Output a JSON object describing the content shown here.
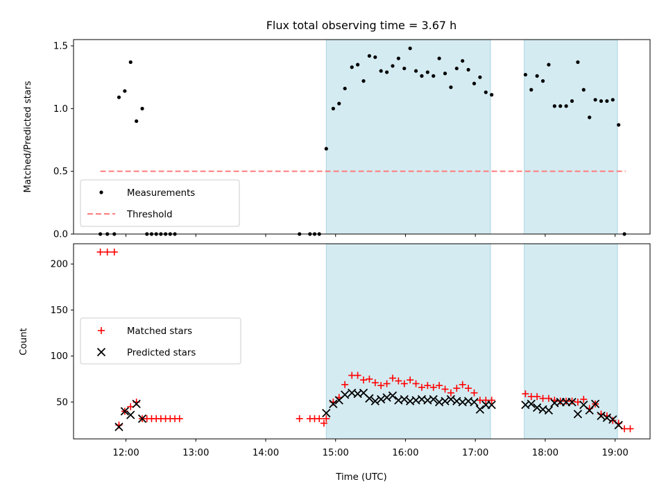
{
  "chart_data": [
    {
      "type": "scatter",
      "title": "Flux total observing time = 3.67 h",
      "xlabel": "",
      "ylabel": "Matched/Predicted stars",
      "ylim": [
        0,
        1.55
      ],
      "yticks": [
        0.0,
        0.5,
        1.0,
        1.5
      ],
      "ytick_labels": [
        "0.0",
        "0.5",
        "1.0",
        "1.5"
      ],
      "xlim": [
        "11:15",
        "19:30"
      ],
      "shaded_ranges": [
        [
          "14:52",
          "17:13"
        ],
        [
          "17:42",
          "19:02"
        ]
      ],
      "shade_color": "#d4ebf1",
      "grid": false,
      "legend_position": "lower-left",
      "series": [
        {
          "name": "Measurements",
          "marker": "dot",
          "color": "#000000",
          "points": [
            [
              "11:38",
              0.0
            ],
            [
              "11:44",
              0.0
            ],
            [
              "11:50",
              0.0
            ],
            [
              "11:54",
              1.09
            ],
            [
              "11:59",
              1.14
            ],
            [
              "12:04",
              1.37
            ],
            [
              "12:09",
              0.9
            ],
            [
              "12:14",
              1.0
            ],
            [
              "12:18",
              0.0
            ],
            [
              "12:22",
              0.0
            ],
            [
              "12:26",
              0.0
            ],
            [
              "12:30",
              0.0
            ],
            [
              "12:34",
              0.0
            ],
            [
              "12:38",
              0.0
            ],
            [
              "12:42",
              0.0
            ],
            [
              "14:29",
              0.0
            ],
            [
              "14:38",
              0.0
            ],
            [
              "14:42",
              0.0
            ],
            [
              "14:46",
              0.0
            ],
            [
              "14:52",
              0.68
            ],
            [
              "14:58",
              1.0
            ],
            [
              "15:03",
              1.04
            ],
            [
              "15:08",
              1.16
            ],
            [
              "15:14",
              1.33
            ],
            [
              "15:19",
              1.35
            ],
            [
              "15:24",
              1.22
            ],
            [
              "15:29",
              1.42
            ],
            [
              "15:34",
              1.41
            ],
            [
              "15:39",
              1.3
            ],
            [
              "15:44",
              1.29
            ],
            [
              "15:49",
              1.34
            ],
            [
              "15:54",
              1.4
            ],
            [
              "15:59",
              1.32
            ],
            [
              "16:04",
              1.48
            ],
            [
              "16:09",
              1.3
            ],
            [
              "16:14",
              1.26
            ],
            [
              "16:19",
              1.29
            ],
            [
              "16:24",
              1.26
            ],
            [
              "16:29",
              1.4
            ],
            [
              "16:34",
              1.28
            ],
            [
              "16:39",
              1.17
            ],
            [
              "16:44",
              1.32
            ],
            [
              "16:49",
              1.38
            ],
            [
              "16:54",
              1.31
            ],
            [
              "16:59",
              1.2
            ],
            [
              "17:04",
              1.25
            ],
            [
              "17:09",
              1.13
            ],
            [
              "17:14",
              1.11
            ],
            [
              "17:43",
              1.27
            ],
            [
              "17:48",
              1.15
            ],
            [
              "17:53",
              1.26
            ],
            [
              "17:58",
              1.22
            ],
            [
              "18:03",
              1.35
            ],
            [
              "18:08",
              1.02
            ],
            [
              "18:13",
              1.02
            ],
            [
              "18:18",
              1.02
            ],
            [
              "18:23",
              1.06
            ],
            [
              "18:28",
              1.37
            ],
            [
              "18:33",
              1.15
            ],
            [
              "18:38",
              0.93
            ],
            [
              "18:43",
              1.07
            ],
            [
              "18:48",
              1.06
            ],
            [
              "18:53",
              1.06
            ],
            [
              "18:58",
              1.07
            ],
            [
              "19:03",
              0.87
            ],
            [
              "19:08",
              0.0
            ]
          ]
        },
        {
          "name": "Threshold",
          "style": "dashed-line",
          "color": "#ff7b7b",
          "points": [
            [
              "11:38",
              0.5
            ],
            [
              "19:09",
              0.5
            ]
          ]
        }
      ]
    },
    {
      "type": "scatter",
      "title": "",
      "xlabel": "Time (UTC)",
      "ylabel": "Count",
      "ylim": [
        10,
        222
      ],
      "yticks": [
        50,
        100,
        150,
        200
      ],
      "ytick_labels": [
        "50",
        "100",
        "150",
        "200"
      ],
      "xlim": [
        "11:15",
        "19:30"
      ],
      "xticks": [
        "12:00",
        "13:00",
        "14:00",
        "15:00",
        "16:00",
        "17:00",
        "18:00",
        "19:00"
      ],
      "xtick_labels": [
        "12:00",
        "13:00",
        "14:00",
        "15:00",
        "16:00",
        "17:00",
        "18:00",
        "19:00"
      ],
      "shaded_ranges": [
        [
          "14:52",
          "17:13"
        ],
        [
          "17:42",
          "19:02"
        ]
      ],
      "shade_color": "#d4ebf1",
      "grid": false,
      "legend_position": "center-left",
      "series": [
        {
          "name": "Matched stars",
          "marker": "plus",
          "color": "#ff0000",
          "points": [
            [
              "11:38",
              213
            ],
            [
              "11:44",
              213
            ],
            [
              "11:50",
              213
            ],
            [
              "11:54",
              25
            ],
            [
              "11:59",
              40
            ],
            [
              "12:04",
              45
            ],
            [
              "12:09",
              50
            ],
            [
              "12:14",
              32
            ],
            [
              "12:18",
              32
            ],
            [
              "12:22",
              32
            ],
            [
              "12:26",
              32
            ],
            [
              "12:30",
              32
            ],
            [
              "12:34",
              32
            ],
            [
              "12:38",
              32
            ],
            [
              "12:42",
              32
            ],
            [
              "12:46",
              32
            ],
            [
              "14:29",
              32
            ],
            [
              "14:38",
              32
            ],
            [
              "14:42",
              32
            ],
            [
              "14:46",
              32
            ],
            [
              "14:50",
              27
            ],
            [
              "14:52",
              32
            ],
            [
              "14:58",
              50
            ],
            [
              "15:03",
              55
            ],
            [
              "15:08",
              69
            ],
            [
              "15:14",
              79
            ],
            [
              "15:19",
              79
            ],
            [
              "15:24",
              74
            ],
            [
              "15:29",
              75
            ],
            [
              "15:34",
              71
            ],
            [
              "15:39",
              68
            ],
            [
              "15:44",
              70
            ],
            [
              "15:49",
              76
            ],
            [
              "15:54",
              73
            ],
            [
              "15:59",
              70
            ],
            [
              "16:04",
              74
            ],
            [
              "16:09",
              70
            ],
            [
              "16:14",
              66
            ],
            [
              "16:19",
              68
            ],
            [
              "16:24",
              66
            ],
            [
              "16:29",
              68
            ],
            [
              "16:34",
              64
            ],
            [
              "16:39",
              60
            ],
            [
              "16:44",
              65
            ],
            [
              "16:49",
              69
            ],
            [
              "16:54",
              65
            ],
            [
              "16:59",
              60
            ],
            [
              "17:04",
              52
            ],
            [
              "17:09",
              52
            ],
            [
              "17:14",
              52
            ],
            [
              "17:43",
              59
            ],
            [
              "17:48",
              56
            ],
            [
              "17:53",
              56
            ],
            [
              "17:58",
              54
            ],
            [
              "18:03",
              54
            ],
            [
              "18:08",
              52
            ],
            [
              "18:13",
              51
            ],
            [
              "18:18",
              51
            ],
            [
              "18:23",
              51
            ],
            [
              "18:28",
              50
            ],
            [
              "18:33",
              53
            ],
            [
              "18:38",
              43
            ],
            [
              "18:43",
              48
            ],
            [
              "18:48",
              37
            ],
            [
              "18:53",
              35
            ],
            [
              "18:58",
              30
            ],
            [
              "19:03",
              27
            ],
            [
              "19:08",
              21
            ],
            [
              "19:13",
              21
            ]
          ]
        },
        {
          "name": "Predicted stars",
          "marker": "x",
          "color": "#000000",
          "points": [
            [
              "11:54",
              23
            ],
            [
              "11:59",
              40
            ],
            [
              "12:04",
              36
            ],
            [
              "12:09",
              48
            ],
            [
              "12:14",
              32
            ],
            [
              "14:52",
              38
            ],
            [
              "14:58",
              48
            ],
            [
              "15:03",
              52
            ],
            [
              "15:08",
              58
            ],
            [
              "15:14",
              60
            ],
            [
              "15:19",
              59
            ],
            [
              "15:24",
              60
            ],
            [
              "15:29",
              54
            ],
            [
              "15:34",
              51
            ],
            [
              "15:39",
              53
            ],
            [
              "15:44",
              55
            ],
            [
              "15:49",
              57
            ],
            [
              "15:54",
              52
            ],
            [
              "15:59",
              53
            ],
            [
              "16:04",
              51
            ],
            [
              "16:09",
              52
            ],
            [
              "16:14",
              53
            ],
            [
              "16:19",
              52
            ],
            [
              "16:24",
              53
            ],
            [
              "16:29",
              50
            ],
            [
              "16:34",
              51
            ],
            [
              "16:39",
              53
            ],
            [
              "16:44",
              51
            ],
            [
              "16:49",
              50
            ],
            [
              "16:54",
              51
            ],
            [
              "16:59",
              50
            ],
            [
              "17:04",
              42
            ],
            [
              "17:09",
              47
            ],
            [
              "17:14",
              47
            ],
            [
              "17:43",
              47
            ],
            [
              "17:48",
              48
            ],
            [
              "17:53",
              44
            ],
            [
              "17:58",
              42
            ],
            [
              "18:03",
              41
            ],
            [
              "18:08",
              49
            ],
            [
              "18:13",
              50
            ],
            [
              "18:18",
              50
            ],
            [
              "18:23",
              50
            ],
            [
              "18:28",
              37
            ],
            [
              "18:33",
              47
            ],
            [
              "18:38",
              41
            ],
            [
              "18:43",
              48
            ],
            [
              "18:48",
              35
            ],
            [
              "18:53",
              33
            ],
            [
              "18:58",
              31
            ],
            [
              "19:03",
              25
            ]
          ]
        }
      ]
    }
  ]
}
